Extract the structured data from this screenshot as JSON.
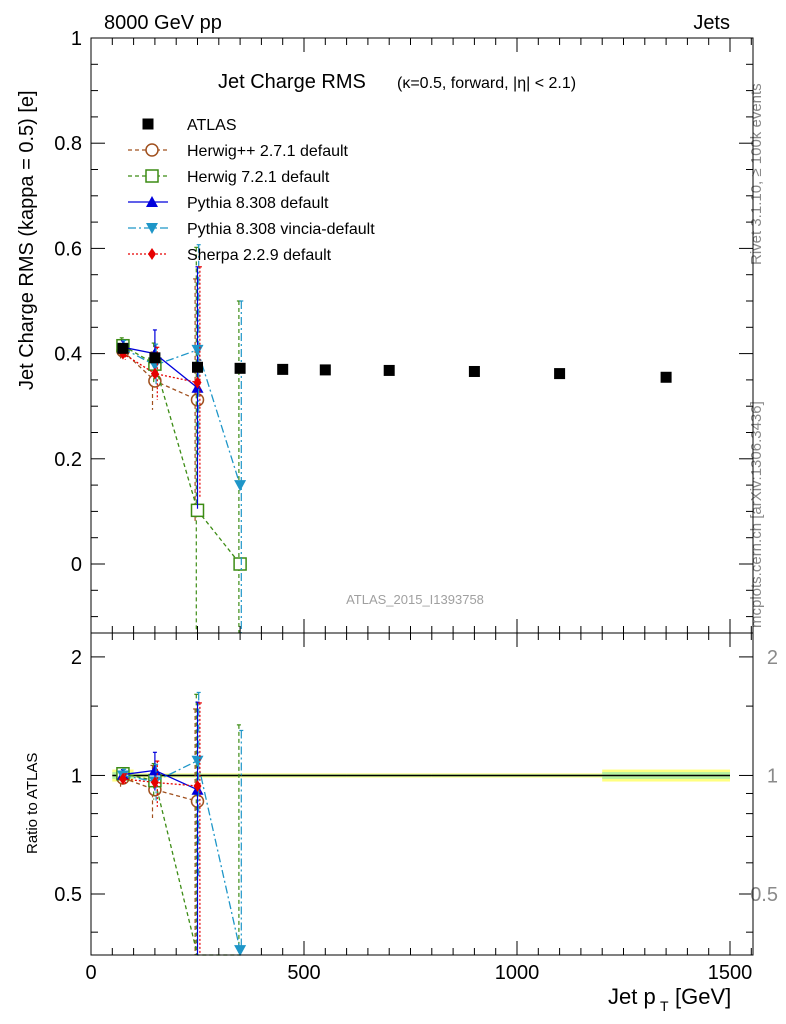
{
  "header": {
    "left": "8000 GeV pp",
    "right": "Jets"
  },
  "side_labels": {
    "rivet": "Rivet 3.1.10, ≥ 100k events",
    "mcplots": "mcplots.cern.ch [arXiv:1306.3436]"
  },
  "chart_data": {
    "type": "scatter",
    "title_main": "Jet Charge RMS",
    "title_sub": "(κ=0.5, forward, |η| < 2.1)",
    "analysis_id": "ATLAS_2015_I1393758",
    "xlabel": "Jet p_T [GeV]",
    "ylabel": "Jet Charge RMS (kappa = 0.5) [e]",
    "ratio_ylabel": "Ratio to ATLAS",
    "xlim": [
      0,
      1550
    ],
    "ylim": [
      -0.13,
      1.0
    ],
    "ratio_ylim": [
      0.35,
      2.3
    ],
    "x_ticks": [
      0,
      500,
      1000,
      1500
    ],
    "y_ticks": [
      0,
      0.2,
      0.4,
      0.6,
      0.8,
      1
    ],
    "ratio_ticks": [
      0.5,
      1,
      2
    ],
    "x_tick_labels": [
      "0",
      "500",
      "1000",
      "1500"
    ],
    "y_tick_labels": [
      "0",
      "0.2",
      "0.4",
      "0.6",
      "0.8",
      "1"
    ],
    "ratio_tick_labels": [
      "0.5",
      "1",
      "2"
    ],
    "legend_position": "top-left",
    "data": {
      "name": "ATLAS",
      "color": "#000000",
      "x": [
        75,
        150,
        250,
        350,
        450,
        550,
        700,
        900,
        1100,
        1350
      ],
      "y": [
        0.41,
        0.392,
        0.374,
        0.372,
        0.37,
        0.369,
        0.368,
        0.366,
        0.362,
        0.355
      ],
      "x_bins": [
        [
          50,
          100
        ],
        [
          100,
          200
        ],
        [
          200,
          300
        ],
        [
          300,
          400
        ],
        [
          400,
          500
        ],
        [
          500,
          600
        ],
        [
          600,
          800
        ],
        [
          800,
          1000
        ],
        [
          1000,
          1200
        ],
        [
          1200,
          1500
        ]
      ]
    },
    "series": [
      {
        "name": "Herwig++ 2.7.1 default",
        "color": "#a0501e",
        "marker": "circle-open",
        "dash": "4,3",
        "x": [
          75,
          150,
          250
        ],
        "y": [
          0.405,
          0.348,
          0.312
        ],
        "err": [
          0.02,
          0.055,
          0.23
        ],
        "ratio": [
          0.985,
          0.92,
          0.86
        ]
      },
      {
        "name": "Herwig 7.2.1 default",
        "color": "#3c8c14",
        "marker": "square-open",
        "dash": "4,3",
        "x": [
          75,
          150,
          250,
          350
        ],
        "y": [
          0.415,
          0.38,
          0.102,
          0.0
        ],
        "err": [
          0.015,
          0.04,
          0.5,
          0.5
        ],
        "ratio": [
          1.01,
          0.97,
          0.27,
          0.0
        ]
      },
      {
        "name": "Pythia 8.308 default",
        "color": "#0000dc",
        "marker": "triangle-up",
        "dash": "",
        "x": [
          75,
          150,
          250
        ],
        "y": [
          0.412,
          0.4,
          0.335
        ],
        "err": [
          0.012,
          0.045,
          0.23
        ],
        "ratio": [
          1.005,
          1.03,
          0.92
        ]
      },
      {
        "name": "Pythia 8.308 vincia-default",
        "color": "#1e96c8",
        "marker": "triangle-down",
        "dash": "8,3,2,3",
        "x": [
          75,
          150,
          250,
          350
        ],
        "y": [
          0.41,
          0.378,
          0.407,
          0.15
        ],
        "err": [
          0.015,
          0.04,
          0.2,
          0.35
        ],
        "ratio": [
          1.0,
          0.965,
          1.09,
          0.36
        ]
      },
      {
        "name": "Sherpa 2.2.9 default",
        "color": "#e60000",
        "marker": "diamond",
        "dash": "2,2",
        "x": [
          75,
          150,
          250
        ],
        "y": [
          0.4,
          0.362,
          0.345
        ],
        "err": [
          0.012,
          0.05,
          0.22
        ],
        "ratio": [
          0.98,
          0.96,
          0.94
        ]
      }
    ]
  }
}
